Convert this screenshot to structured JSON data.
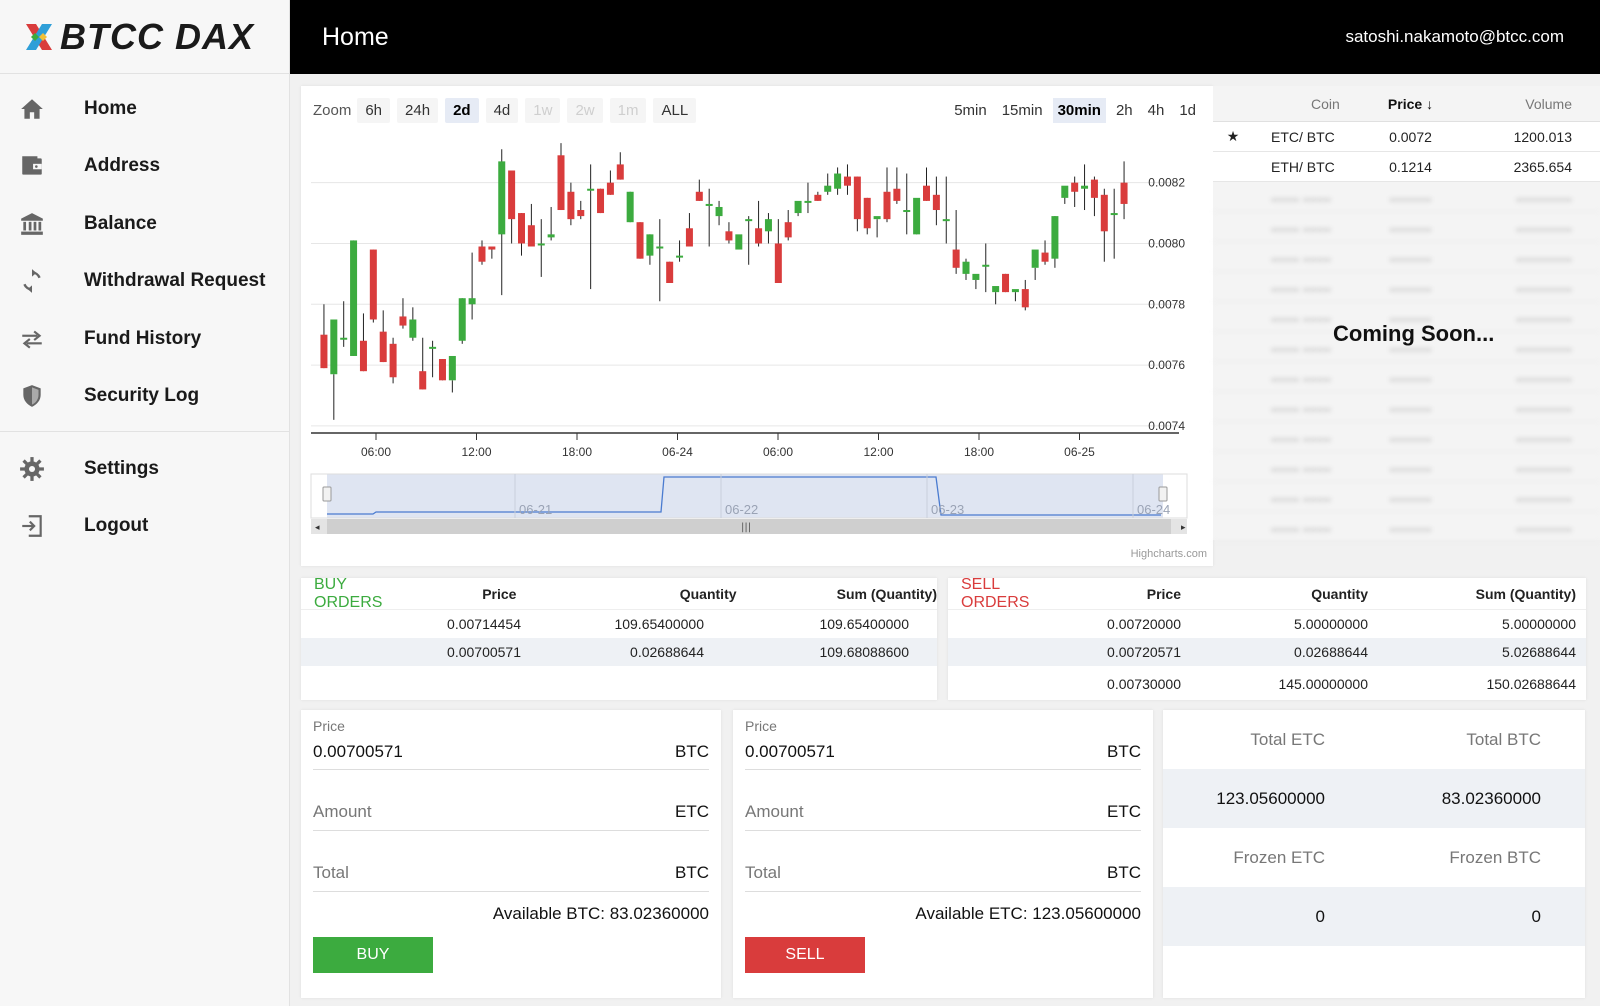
{
  "app": {
    "brand": "BTCC DAX"
  },
  "header": {
    "title": "Home",
    "user": "satoshi.nakamoto@btcc.com"
  },
  "sidebar": {
    "items": [
      {
        "label": "Home",
        "icon": "home-icon"
      },
      {
        "label": "Address",
        "icon": "wallet-icon"
      },
      {
        "label": "Balance",
        "icon": "bank-icon"
      },
      {
        "label": "Withdrawal Request",
        "icon": "refresh-icon"
      },
      {
        "label": "Fund History",
        "icon": "transfer-icon"
      },
      {
        "label": "Security Log",
        "icon": "shield-icon"
      }
    ],
    "footer_items": [
      {
        "label": "Settings",
        "icon": "gear-icon"
      },
      {
        "label": "Logout",
        "icon": "logout-icon"
      }
    ]
  },
  "chart": {
    "zoom_label": "Zoom",
    "zoom_options": [
      "6h",
      "24h",
      "2d",
      "4d",
      "1w",
      "2w",
      "1m",
      "ALL"
    ],
    "zoom_active": "2d",
    "zoom_disabled": [
      "1w",
      "2w",
      "1m"
    ],
    "intervals": [
      "5min",
      "15min",
      "30min",
      "2h",
      "4h",
      "1d"
    ],
    "interval_active": "30min",
    "credits": "Highcharts.com",
    "colors": {
      "up": "#3cab3f",
      "down": "#d93c3c",
      "navigator": "#4a7bd0"
    }
  },
  "chart_data": {
    "type": "candlestick",
    "y_tick_labels": [
      "0.0082",
      "0.0080",
      "0.0078",
      "0.0076",
      "0.0074"
    ],
    "ylim": [
      0.00738,
      0.00836
    ],
    "x_tick_labels": [
      "06:00",
      "12:00",
      "18:00",
      "06-24",
      "06:00",
      "12:00",
      "18:00",
      "06-25"
    ],
    "navigator_labels": [
      "06-21",
      "06-22",
      "06-23",
      "06-24"
    ],
    "candles": [
      [
        0.0077,
        0.0078,
        0.00759,
        0.00759
      ],
      [
        0.00757,
        0.00757,
        0.00775,
        0.00742
      ],
      [
        0.00769,
        0.00781,
        0.00769,
        0.00766
      ],
      [
        0.00763,
        0.00801,
        0.00801,
        0.00763
      ],
      [
        0.00768,
        0.00777,
        0.00758,
        0.00758
      ],
      [
        0.00798,
        0.00798,
        0.00775,
        0.00774
      ],
      [
        0.00771,
        0.00778,
        0.00761,
        0.00761
      ],
      [
        0.00767,
        0.00769,
        0.00756,
        0.00754
      ],
      [
        0.00776,
        0.00782,
        0.00773,
        0.00772
      ],
      [
        0.00769,
        0.00779,
        0.00775,
        0.00768
      ],
      [
        0.00758,
        0.00769,
        0.00752,
        0.00752
      ],
      [
        0.00766,
        0.00768,
        0.00766,
        0.00756
      ],
      [
        0.00762,
        0.00762,
        0.00755,
        0.00755
      ],
      [
        0.00755,
        0.00755,
        0.00763,
        0.00751
      ],
      [
        0.00768,
        0.00782,
        0.00782,
        0.00767
      ],
      [
        0.0078,
        0.00797,
        0.00782,
        0.00775
      ],
      [
        0.00799,
        0.00801,
        0.00794,
        0.00793
      ],
      [
        0.00799,
        0.00799,
        0.00798,
        0.00795
      ],
      [
        0.00803,
        0.00831,
        0.00827,
        0.00783
      ],
      [
        0.00824,
        0.00824,
        0.00808,
        0.008
      ],
      [
        0.0081,
        0.0081,
        0.008,
        0.00796
      ],
      [
        0.00806,
        0.00813,
        0.00799,
        0.00799
      ],
      [
        0.008,
        0.00808,
        0.008,
        0.00789
      ],
      [
        0.00802,
        0.00812,
        0.00803,
        0.00801
      ],
      [
        0.00829,
        0.00833,
        0.00811,
        0.00811
      ],
      [
        0.00817,
        0.0082,
        0.00808,
        0.00806
      ],
      [
        0.00811,
        0.00814,
        0.00809,
        0.00808
      ],
      [
        0.00818,
        0.00826,
        0.00818,
        0.00785
      ],
      [
        0.00818,
        0.00818,
        0.0081,
        0.0081
      ],
      [
        0.0082,
        0.00824,
        0.00816,
        0.00816
      ],
      [
        0.00826,
        0.0083,
        0.00821,
        0.00821
      ],
      [
        0.00807,
        0.00817,
        0.00817,
        0.00807
      ],
      [
        0.00807,
        0.00807,
        0.00795,
        0.00795
      ],
      [
        0.00796,
        0.00803,
        0.00803,
        0.00793
      ],
      [
        0.00799,
        0.00808,
        0.00799,
        0.00781
      ],
      [
        0.00794,
        0.00794,
        0.00787,
        0.00787
      ],
      [
        0.00796,
        0.00801,
        0.00796,
        0.00794
      ],
      [
        0.00805,
        0.0081,
        0.00799,
        0.00799
      ],
      [
        0.00817,
        0.00821,
        0.00814,
        0.00814
      ],
      [
        0.00813,
        0.00818,
        0.00813,
        0.00799
      ],
      [
        0.00809,
        0.00814,
        0.00812,
        0.00806
      ],
      [
        0.00804,
        0.00807,
        0.00801,
        0.008
      ],
      [
        0.00798,
        0.00798,
        0.00803,
        0.00798
      ],
      [
        0.00808,
        0.00809,
        0.00808,
        0.00793
      ],
      [
        0.00805,
        0.00814,
        0.008,
        0.00799
      ],
      [
        0.00804,
        0.0081,
        0.00808,
        0.008
      ],
      [
        0.008,
        0.00808,
        0.00787,
        0.00787
      ],
      [
        0.00807,
        0.00811,
        0.00802,
        0.00801
      ],
      [
        0.0081,
        0.00811,
        0.00814,
        0.00809
      ],
      [
        0.00814,
        0.0082,
        0.00814,
        0.0081
      ],
      [
        0.00816,
        0.00817,
        0.00814,
        0.00814
      ],
      [
        0.00817,
        0.00823,
        0.00819,
        0.00816
      ],
      [
        0.00818,
        0.00825,
        0.00823,
        0.00816
      ],
      [
        0.00822,
        0.00826,
        0.00819,
        0.00816
      ],
      [
        0.00822,
        0.00822,
        0.00808,
        0.00804
      ],
      [
        0.00815,
        0.00815,
        0.00805,
        0.00803
      ],
      [
        0.00808,
        0.00808,
        0.00809,
        0.00802
      ],
      [
        0.00817,
        0.00825,
        0.00808,
        0.00807
      ],
      [
        0.00818,
        0.00825,
        0.00814,
        0.00813
      ],
      [
        0.00811,
        0.00823,
        0.00811,
        0.00803
      ],
      [
        0.00803,
        0.00814,
        0.00815,
        0.00803
      ],
      [
        0.00819,
        0.00825,
        0.00814,
        0.00814
      ],
      [
        0.00816,
        0.00822,
        0.00811,
        0.00806
      ],
      [
        0.00808,
        0.00822,
        0.00808,
        0.008
      ],
      [
        0.00798,
        0.00811,
        0.00792,
        0.0079
      ],
      [
        0.0079,
        0.00795,
        0.00794,
        0.00788
      ],
      [
        0.00788,
        0.00788,
        0.0079,
        0.00785
      ],
      [
        0.00793,
        0.008,
        0.00793,
        0.00784
      ],
      [
        0.00784,
        0.00784,
        0.00786,
        0.0078
      ],
      [
        0.0079,
        0.0079,
        0.00784,
        0.00784
      ],
      [
        0.00784,
        0.00784,
        0.00785,
        0.00781
      ],
      [
        0.00785,
        0.00788,
        0.00779,
        0.00778
      ],
      [
        0.00792,
        0.00792,
        0.00798,
        0.00788
      ],
      [
        0.00797,
        0.00801,
        0.00794,
        0.00793
      ],
      [
        0.00795,
        0.00809,
        0.00809,
        0.00792
      ],
      [
        0.00815,
        0.00817,
        0.00819,
        0.00813
      ],
      [
        0.0082,
        0.00822,
        0.00817,
        0.00812
      ],
      [
        0.00818,
        0.00826,
        0.00819,
        0.00811
      ],
      [
        0.00821,
        0.00822,
        0.00815,
        0.00809
      ],
      [
        0.00816,
        0.00818,
        0.00804,
        0.00794
      ],
      [
        0.0081,
        0.00818,
        0.0081,
        0.00795
      ],
      [
        0.0082,
        0.00827,
        0.00813,
        0.00808
      ]
    ]
  },
  "market": {
    "headers": {
      "coin": "Coin",
      "price": "Price",
      "volume": "Volume"
    },
    "rows": [
      {
        "star": "★",
        "coin": "ETC/ BTC",
        "price": "0.0072",
        "volume": "1200.013"
      },
      {
        "star": "",
        "coin": "ETH/ BTC",
        "price": "0.1214",
        "volume": "2365.654"
      }
    ],
    "blurred_row_count": 12,
    "coming_soon": "Coming Soon..."
  },
  "buy_orders": {
    "title": "BUY ORDERS",
    "headers": [
      "Price",
      "Quantity",
      "Sum (Quantity)"
    ],
    "rows": [
      [
        "0.00714454",
        "109.65400000",
        "109.65400000"
      ],
      [
        "0.00700571",
        "0.02688644",
        "109.68088600"
      ]
    ]
  },
  "sell_orders": {
    "title": "SELL ORDERS",
    "headers": [
      "Price",
      "Quantity",
      "Sum (Quantity)"
    ],
    "rows": [
      [
        "0.00720000",
        "5.00000000",
        "5.00000000"
      ],
      [
        "0.00720571",
        "0.02688644",
        "5.02688644"
      ],
      [
        "0.00730000",
        "145.00000000",
        "150.02688644"
      ]
    ]
  },
  "buy_form": {
    "price_label": "Price",
    "price_value": "0.00700571",
    "price_unit": "BTC",
    "amount_placeholder": "Amount",
    "amount_unit": "ETC",
    "total_placeholder": "Total",
    "total_unit": "BTC",
    "available": "Available BTC: 83.02360000",
    "button": "BUY",
    "button_color": "#3cab3f"
  },
  "sell_form": {
    "price_label": "Price",
    "price_value": "0.00700571",
    "price_unit": "BTC",
    "amount_placeholder": "Amount",
    "amount_unit": "ETC",
    "total_placeholder": "Total",
    "total_unit": "BTC",
    "available": "Available ETC: 123.05600000",
    "button": "SELL",
    "button_color": "#d93c3c"
  },
  "balances": {
    "total_etc_label": "Total ETC",
    "total_btc_label": "Total BTC",
    "total_etc": "123.05600000",
    "total_btc": "83.02360000",
    "frozen_etc_label": "Frozen ETC",
    "frozen_btc_label": "Frozen BTC",
    "frozen_etc": "0",
    "frozen_btc": "0"
  }
}
